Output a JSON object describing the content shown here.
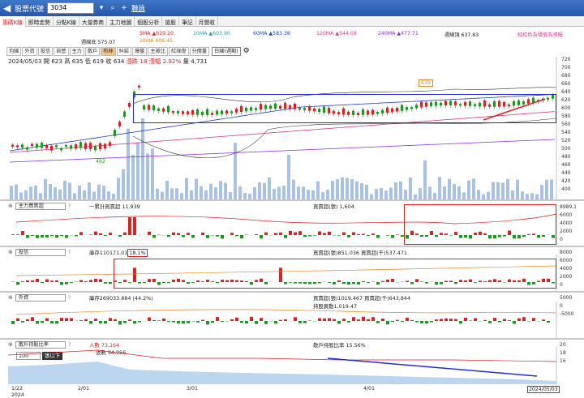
{
  "topbar": {
    "back": "◀",
    "title": "股票代號",
    "stock_code": "3034",
    "link": "聯詠"
  },
  "tabs": [
    {
      "label": "籌碼K線",
      "active": true
    },
    {
      "label": "即時走勢",
      "active": false
    },
    {
      "label": "分點K線",
      "active": false
    },
    {
      "label": "大量券商",
      "active": false
    },
    {
      "label": "主力地圖",
      "active": false
    },
    {
      "label": "個股分析",
      "active": false
    },
    {
      "label": "搶股",
      "active": false
    },
    {
      "label": "筆記",
      "active": false
    },
    {
      "label": "月營收",
      "active": false
    }
  ],
  "ma": {
    "ma5": "5MA ▲619.20",
    "ma10": "10MA ▲603.90",
    "ma60": "60MA ▲583.38",
    "ma120": "120MA ▲544.08",
    "ma240": "240MA ▲477.71",
    "week_line": "週線頂 637.83",
    "week_bottom": "週線底 575.07",
    "ma20": "20MA 606.45",
    "note": "紅紅色為殘值為漲幅"
  },
  "controls": [
    "均線",
    "外資",
    "投信",
    "自營",
    "主力",
    "散戶",
    "布林",
    "糾結",
    "爆量",
    "主被比",
    "紅綠燈",
    "分價量"
  ],
  "controls_active_index": 6,
  "period_select": "日線(週期)",
  "quote": {
    "date": "2024/05/03",
    "open": "開 623",
    "high": "高 635",
    "low": "低 619",
    "close": "收 634",
    "change": "漲跌 18",
    "pct": "漲幅 2.92%",
    "volume": "量 4,731"
  },
  "price_pane": {
    "y_ticks": [
      "720",
      "700",
      "680",
      "660",
      "640",
      "620",
      "600",
      "580",
      "560",
      "540",
      "520",
      "500",
      "480",
      "460",
      "440",
      "420",
      "400"
    ],
    "high_label": "639",
    "low_label": "492"
  },
  "panes": [
    {
      "name": "主力買賣超",
      "legend1": "一累計買賣超 11,939",
      "legend2": "買賣超(張) 1,604",
      "y_ticks": [
        "8989.1",
        "6000",
        "4000",
        "2000",
        "0"
      ],
      "pct": ""
    },
    {
      "name": "投信",
      "legend1": "庫存110171.01",
      "pct": "18.1%",
      "legend2": "買賣超(張)851.036 買賣超(千)537,471",
      "y_ticks": [
        "8000",
        "6000",
        "4000",
        "2000",
        "0"
      ]
    },
    {
      "name": "外資",
      "legend1": "庫存269033.884 (44.2%)",
      "legend2": "買賣超(張)1019.467 買賣超(千)643,844",
      "legend3": "持股異動1,019.47",
      "y_ticks": [
        "5000",
        "0",
        "-5000"
      ],
      "pct": ""
    },
    {
      "name": "散戶持股比率",
      "legend1": "人數 73,164",
      "legend1b": "張數 94,956",
      "legend2": "散戶持股比率 15.56%",
      "y_ticks": [
        "20",
        "18",
        "16"
      ],
      "pct": ""
    }
  ],
  "retail_ctrl": {
    "value": "100",
    "label": "張以下"
  },
  "x_axis": {
    "labels": [
      "1/22",
      "2/01",
      "3/01",
      "4/01",
      "2024/05/03"
    ],
    "year": "2024"
  },
  "colors": {
    "up": "#e02020",
    "down": "#1a9a1a",
    "accent": "#2456a8"
  }
}
